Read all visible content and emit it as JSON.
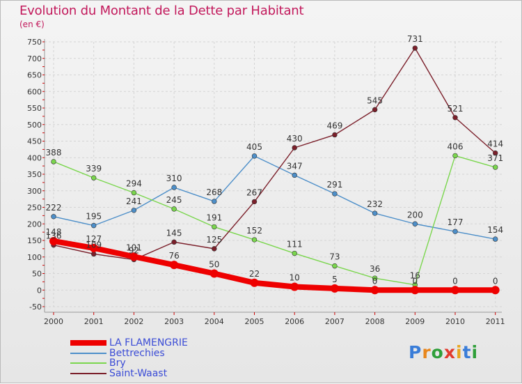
{
  "header": {
    "title": "Evolution du Montant de la Dette par Habitant",
    "unit": "(en €)"
  },
  "colors": {
    "title": "#c2185b",
    "legend_text": "#3b4cd6",
    "axis_red": "#cc0000"
  },
  "logo": {
    "text": "Proxiti",
    "letters": [
      "P",
      "r",
      "o",
      "x",
      "i",
      "t",
      "i"
    ]
  },
  "chart_data": {
    "type": "line",
    "x": [
      "2000",
      "2001",
      "2002",
      "2003",
      "2004",
      "2005",
      "2006",
      "2007",
      "2008",
      "2009",
      "2010",
      "2011"
    ],
    "ylim": [
      -50,
      750
    ],
    "yticks": [
      -50,
      0,
      50,
      100,
      150,
      200,
      250,
      300,
      350,
      400,
      450,
      500,
      550,
      600,
      650,
      700,
      750
    ],
    "grid": true,
    "legend_position": "bottom-left",
    "series": [
      {
        "name": "LA FLAMENGRIE",
        "color": "#ee0000",
        "values": [
          148,
          127,
          101,
          76,
          50,
          22,
          10,
          5,
          0,
          0,
          0,
          0
        ]
      },
      {
        "name": "Bettrechies",
        "color": "#4d8fc9",
        "values": [
          222,
          195,
          241,
          310,
          268,
          405,
          347,
          291,
          232,
          200,
          177,
          154
        ]
      },
      {
        "name": "Bry",
        "color": "#7ad64d",
        "values": [
          388,
          339,
          294,
          245,
          191,
          152,
          111,
          73,
          36,
          16,
          406,
          371
        ]
      },
      {
        "name": "Saint-Waast",
        "color": "#7b1f2a",
        "values": [
          136,
          109,
          92,
          145,
          125,
          267,
          430,
          469,
          545,
          731,
          521,
          414
        ]
      }
    ],
    "labels": [
      {
        "series": 0,
        "values": [
          "148",
          "127",
          "101",
          "76",
          "50",
          "22",
          "10",
          "5",
          "0",
          "0",
          "0",
          "0"
        ]
      },
      {
        "series": 1,
        "values": [
          "222",
          "195",
          "241",
          "310",
          "268",
          "405",
          "347",
          "291",
          "232",
          "200",
          "177",
          "154"
        ]
      },
      {
        "series": 2,
        "values": [
          "388",
          "339",
          "294",
          "245",
          "191",
          "152",
          "111",
          "73",
          "36",
          "16",
          "406",
          "371"
        ]
      },
      {
        "series": 3,
        "values": [
          "136",
          "109",
          "92",
          "145",
          "125",
          "267",
          "430",
          "469",
          "545",
          "731",
          "521",
          "414"
        ]
      }
    ]
  }
}
